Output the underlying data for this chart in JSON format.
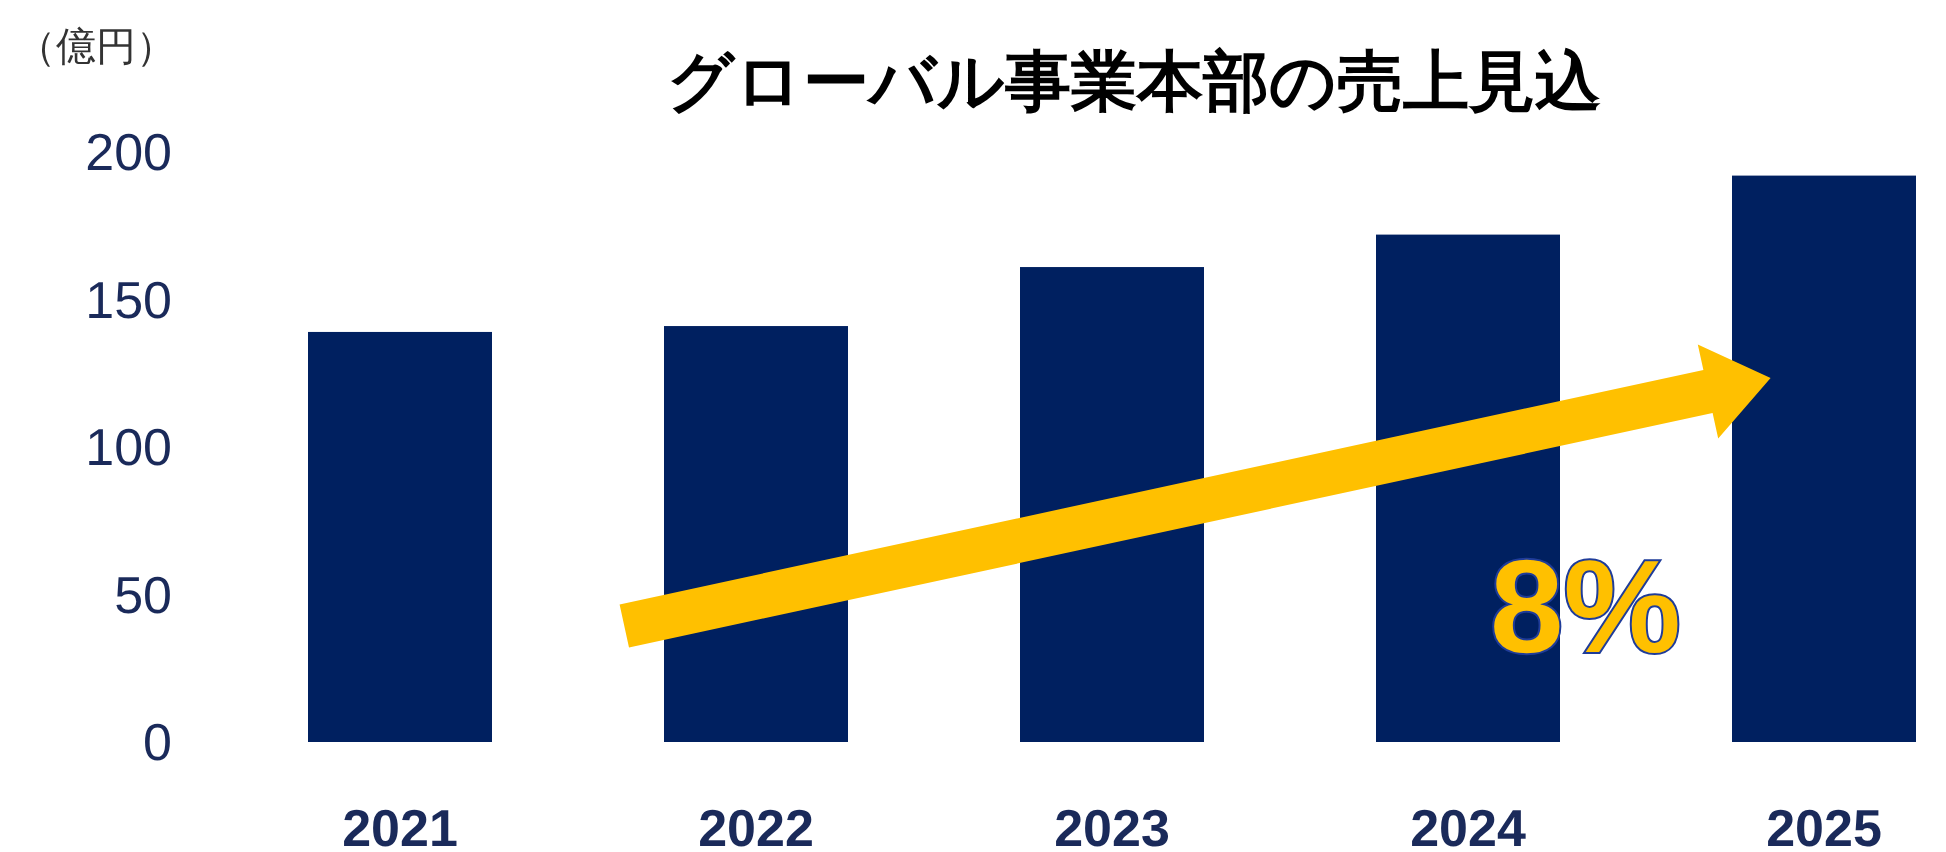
{
  "chart_data": {
    "type": "bar",
    "title": "グローバル事業本部の売上見込",
    "ylabel": "（億円）",
    "categories": [
      "2021",
      "2022",
      "2023",
      "2024",
      "2025"
    ],
    "values": [
      139,
      141,
      161,
      172,
      192
    ],
    "color": "#002060",
    "ylim": [
      0,
      200
    ],
    "yticks": [
      0,
      50,
      100,
      150,
      200
    ],
    "grid": false,
    "annotations": [
      "8%"
    ]
  }
}
